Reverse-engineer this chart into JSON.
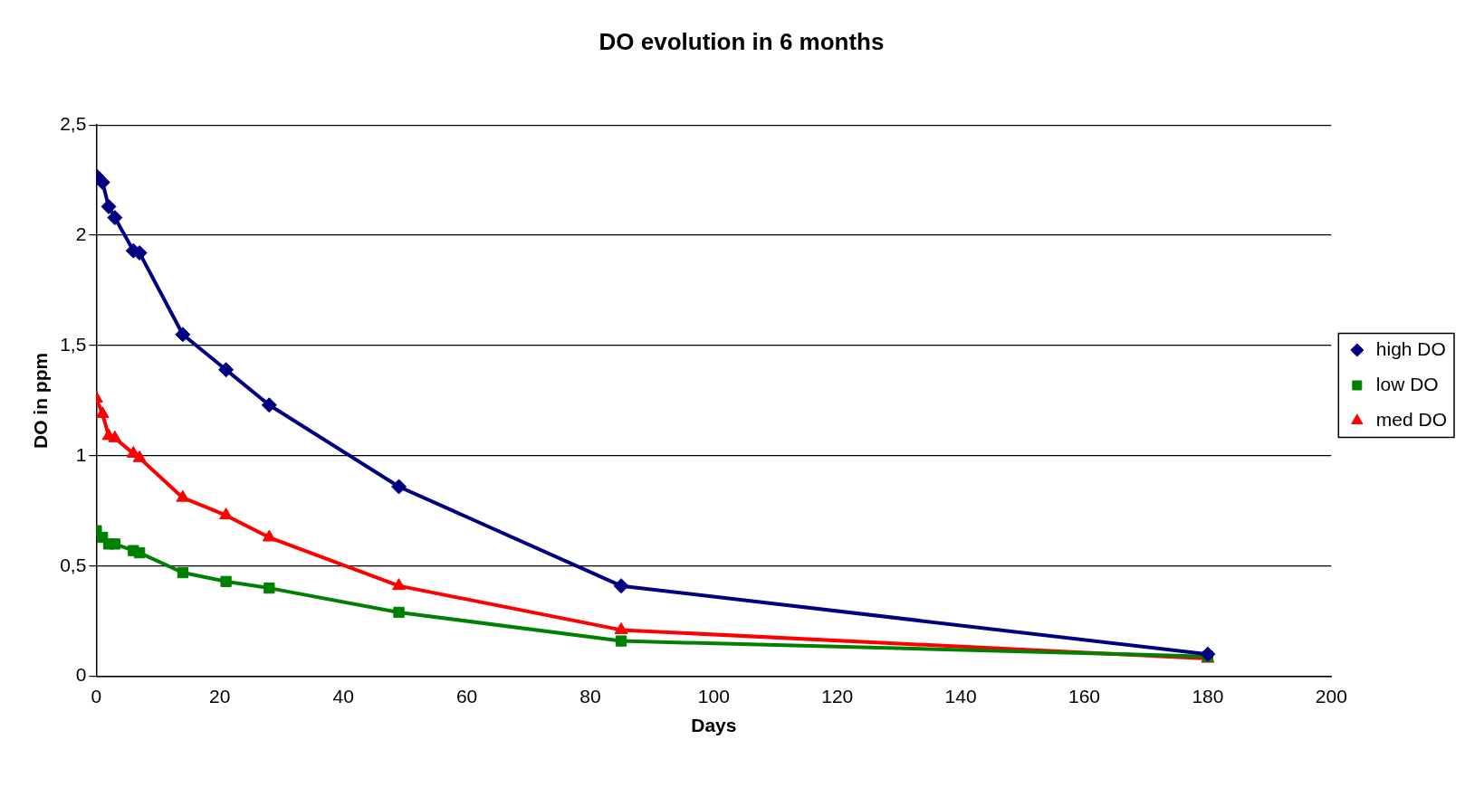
{
  "chart_data": {
    "type": "line",
    "title": "DO evolution in 6 months",
    "xlabel": "Days",
    "ylabel": "DO in ppm",
    "x": [
      0,
      1,
      2,
      3,
      6,
      7,
      14,
      21,
      28,
      49,
      85,
      180
    ],
    "series": [
      {
        "name": "high DO",
        "color": "#000080",
        "marker": "diamond",
        "values": [
          2.27,
          2.24,
          2.13,
          2.08,
          1.93,
          1.92,
          1.55,
          1.39,
          1.23,
          0.86,
          0.41,
          0.1
        ]
      },
      {
        "name": "low DO",
        "color": "#008000",
        "marker": "square",
        "values": [
          0.66,
          0.63,
          0.6,
          0.6,
          0.57,
          0.56,
          0.47,
          0.43,
          0.4,
          0.29,
          0.16,
          0.09
        ]
      },
      {
        "name": "med DO",
        "color": "#ff0000",
        "marker": "triangle",
        "values": [
          1.26,
          1.19,
          1.09,
          1.08,
          1.01,
          0.99,
          0.81,
          0.73,
          0.63,
          0.41,
          0.21,
          0.08
        ]
      }
    ],
    "xlim": [
      0,
      200
    ],
    "xticks": [
      0,
      20,
      40,
      60,
      80,
      100,
      120,
      140,
      160,
      180,
      200
    ],
    "ylim": [
      0,
      2.5
    ],
    "yticks": [
      0,
      {
        "value": 0.5,
        "label": "0,5"
      },
      1,
      {
        "value": 1.5,
        "label": "1,5"
      },
      2,
      {
        "value": 2.5,
        "label": "2,5"
      }
    ],
    "grid": "y",
    "legend": "right",
    "line_style": "solid"
  }
}
